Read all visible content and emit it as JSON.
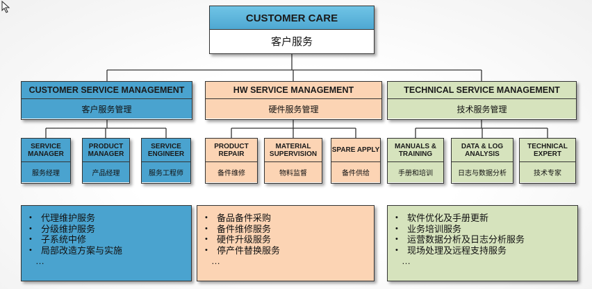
{
  "root": {
    "title": "CUSTOMER CARE",
    "subtitle": "客户服务"
  },
  "groups": [
    {
      "title": "CUSTOMER SERVICE MANAGEMENT",
      "subtitle": "客户服务管理",
      "children": [
        {
          "title": "SERVICE MANAGER",
          "subtitle": "服务经理"
        },
        {
          "title": "PRODUCT MANAGER",
          "subtitle": "产品经理"
        },
        {
          "title": "SERVICE ENGINEER",
          "subtitle": "服务工程师"
        }
      ],
      "items": [
        "代理维护服务",
        "分级维护服务",
        "子系统中修",
        "局部改造方案与实施"
      ],
      "more": "…"
    },
    {
      "title": "HW SERVICE MANAGEMENT",
      "subtitle": "硬件服务管理",
      "children": [
        {
          "title": "PRODUCT REPAIR",
          "subtitle": "备件维修"
        },
        {
          "title": "MATERIAL SUPERVISION",
          "subtitle": "物料监督"
        },
        {
          "title": "SPARE APPLY",
          "subtitle": "备件供给"
        }
      ],
      "items": [
        "备品备件采购",
        "备件维修服务",
        "硬件升级服务",
        "停产件替换服务"
      ],
      "more": "…"
    },
    {
      "title": "TECHNICAL SERVICE MANAGEMENT",
      "subtitle": "技术服务管理",
      "children": [
        {
          "title": "MANUALS & TRAINING",
          "subtitle": "手册和培训"
        },
        {
          "title": "DATA & LOG ANALYSIS",
          "subtitle": "日志与数据分析"
        },
        {
          "title": "TECHNICAL EXPERT",
          "subtitle": "技术专家"
        }
      ],
      "items": [
        "软件优化及手册更新",
        "业务培训服务",
        "运营数据分析及日志分析服务",
        "现场处理及远程支持服务"
      ],
      "more": "…"
    }
  ]
}
